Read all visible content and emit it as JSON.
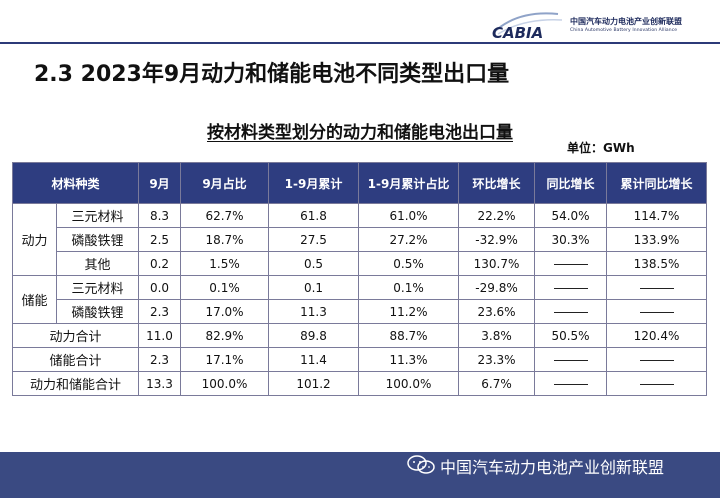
{
  "header": {
    "logo_text": "CABIA",
    "org_name_cn": "中国汽车动力电池产业创新联盟",
    "org_name_en": "China Automotive Battery Innovation Alliance"
  },
  "slide_title": "2.3 2023年9月动力和储能电池不同类型出口量",
  "table_title": "按材料类型划分的动力和储能电池出口量",
  "unit": "单位：GWh",
  "columns": [
    "材料种类",
    "9月",
    "9月占比",
    "1-9月累计",
    "1-9月累计占比",
    "环比增长",
    "同比增长",
    "累计同比增长"
  ],
  "groups": [
    {
      "label": "动力",
      "rows": [
        {
          "material": "三元材料",
          "sep": "8.3",
          "sep_share": "62.7%",
          "ytd": "61.8",
          "ytd_share": "61.0%",
          "mom": "22.2%",
          "yoy": "54.0%",
          "ytd_yoy": "114.7%"
        },
        {
          "material": "磷酸铁锂",
          "sep": "2.5",
          "sep_share": "18.7%",
          "ytd": "27.5",
          "ytd_share": "27.2%",
          "mom": "-32.9%",
          "yoy": "30.3%",
          "ytd_yoy": "133.9%"
        },
        {
          "material": "其他",
          "sep": "0.2",
          "sep_share": "1.5%",
          "ytd": "0.5",
          "ytd_share": "0.5%",
          "mom": "130.7%",
          "yoy": "",
          "ytd_yoy": "138.5%"
        }
      ]
    },
    {
      "label": "储能",
      "rows": [
        {
          "material": "三元材料",
          "sep": "0.0",
          "sep_share": "0.1%",
          "ytd": "0.1",
          "ytd_share": "0.1%",
          "mom": "-29.8%",
          "yoy": "",
          "ytd_yoy": ""
        },
        {
          "material": "磷酸铁锂",
          "sep": "2.3",
          "sep_share": "17.0%",
          "ytd": "11.3",
          "ytd_share": "11.2%",
          "mom": "23.6%",
          "yoy": "",
          "ytd_yoy": ""
        }
      ]
    }
  ],
  "totals": [
    {
      "label": "动力合计",
      "sep": "11.0",
      "sep_share": "82.9%",
      "ytd": "89.8",
      "ytd_share": "88.7%",
      "mom": "3.8%",
      "yoy": "50.5%",
      "ytd_yoy": "120.4%"
    },
    {
      "label": "储能合计",
      "sep": "2.3",
      "sep_share": "17.1%",
      "ytd": "11.4",
      "ytd_share": "11.3%",
      "mom": "23.3%",
      "yoy": "",
      "ytd_yoy": ""
    },
    {
      "label": "动力和储能合计",
      "sep": "13.3",
      "sep_share": "100.0%",
      "ytd": "101.2",
      "ytd_share": "100.0%",
      "mom": "6.7%",
      "yoy": "",
      "ytd_yoy": ""
    }
  ],
  "footer": {
    "text": "中国汽车动力电池产业创新联盟",
    "icon": "wechat-icon"
  },
  "colors": {
    "header_bg": "#2e3d80",
    "footer_bg": "#3a4a82",
    "logo": "#1d2a5c"
  }
}
